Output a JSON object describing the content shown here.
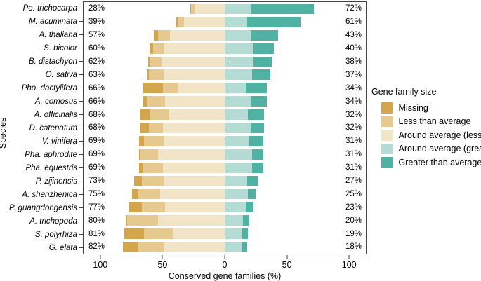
{
  "chart_data": {
    "type": "bar",
    "variant": "horizontal-diverging-stacked",
    "title": "",
    "xlabel": "Conserved gene families (%)",
    "ylabel": "Species",
    "x_range": [
      -114,
      114
    ],
    "grid": false,
    "x_ticks": [
      {
        "value": -100,
        "label": "100"
      },
      {
        "value": -50,
        "label": "50"
      },
      {
        "value": 0,
        "label": "0"
      },
      {
        "value": 50,
        "label": "50"
      },
      {
        "value": 100,
        "label": "100"
      }
    ],
    "legend": {
      "title": "Gene family size",
      "position": "right",
      "items": [
        {
          "label": "Missing",
          "color": "#d3a64e"
        },
        {
          "label": "Less than average",
          "color": "#e5c98e"
        },
        {
          "label": "Around average (less)",
          "color": "#f2e5c7"
        },
        {
          "label": "Around average (greater)",
          "color": "#b4dcd4"
        },
        {
          "label": "Greater than average",
          "color": "#4fb2a3"
        }
      ]
    },
    "series_keys": [
      "missing",
      "less_than_average",
      "around_average_less",
      "around_average_greater",
      "greater_than_average"
    ],
    "rows": [
      {
        "species": "Po. trichocarpa",
        "left_label": "28%",
        "right_label": "72%",
        "missing": 1,
        "less_than_average": 3,
        "around_average_less": 24,
        "around_average_greater": 21,
        "greater_than_average": 51
      },
      {
        "species": "M. acuminata",
        "left_label": "39%",
        "right_label": "61%",
        "missing": 1,
        "less_than_average": 5,
        "around_average_less": 33,
        "around_average_greater": 18,
        "greater_than_average": 43
      },
      {
        "species": "A. thaliana",
        "left_label": "57%",
        "right_label": "43%",
        "missing": 3,
        "less_than_average": 10,
        "around_average_less": 44,
        "around_average_greater": 21,
        "greater_than_average": 22
      },
      {
        "species": "S. bicolor",
        "left_label": "60%",
        "right_label": "40%",
        "missing": 2,
        "less_than_average": 9,
        "around_average_less": 49,
        "around_average_greater": 23,
        "greater_than_average": 17
      },
      {
        "species": "B. distachyon",
        "left_label": "62%",
        "right_label": "38%",
        "missing": 2,
        "less_than_average": 9,
        "around_average_less": 51,
        "around_average_greater": 23,
        "greater_than_average": 15
      },
      {
        "species": "O. sativa",
        "left_label": "63%",
        "right_label": "37%",
        "missing": 2,
        "less_than_average": 12,
        "around_average_less": 49,
        "around_average_greater": 22,
        "greater_than_average": 15
      },
      {
        "species": "Pho. dactylifera",
        "left_label": "66%",
        "right_label": "34%",
        "missing": 16,
        "less_than_average": 12,
        "around_average_less": 38,
        "around_average_greater": 17,
        "greater_than_average": 17
      },
      {
        "species": "A. comosus",
        "left_label": "66%",
        "right_label": "34%",
        "missing": 3,
        "less_than_average": 15,
        "around_average_less": 48,
        "around_average_greater": 21,
        "greater_than_average": 13
      },
      {
        "species": "A. officinalis",
        "left_label": "68%",
        "right_label": "32%",
        "missing": 8,
        "less_than_average": 15,
        "around_average_less": 45,
        "around_average_greater": 19,
        "greater_than_average": 13
      },
      {
        "species": "D. catenatum",
        "left_label": "68%",
        "right_label": "32%",
        "missing": 7,
        "less_than_average": 11,
        "around_average_less": 50,
        "around_average_greater": 21,
        "greater_than_average": 11
      },
      {
        "species": "V. vinifera",
        "left_label": "69%",
        "right_label": "31%",
        "missing": 4,
        "less_than_average": 16,
        "around_average_less": 49,
        "around_average_greater": 20,
        "greater_than_average": 11
      },
      {
        "species": "Pha. aphrodite",
        "left_label": "69%",
        "right_label": "31%",
        "missing": 1,
        "less_than_average": 14,
        "around_average_less": 54,
        "around_average_greater": 22,
        "greater_than_average": 9
      },
      {
        "species": "Pha. equestris",
        "left_label": "69%",
        "right_label": "31%",
        "missing": 3,
        "less_than_average": 16,
        "around_average_less": 50,
        "around_average_greater": 22,
        "greater_than_average": 9
      },
      {
        "species": "P. zijinensis",
        "left_label": "73%",
        "right_label": "27%",
        "missing": 6,
        "less_than_average": 18,
        "around_average_less": 49,
        "around_average_greater": 18,
        "greater_than_average": 9
      },
      {
        "species": "A. shenzhenica",
        "left_label": "75%",
        "right_label": "25%",
        "missing": 5,
        "less_than_average": 18,
        "around_average_less": 52,
        "around_average_greater": 19,
        "greater_than_average": 6
      },
      {
        "species": "P. guangdongensis",
        "left_label": "77%",
        "right_label": "23%",
        "missing": 10,
        "less_than_average": 19,
        "around_average_less": 48,
        "around_average_greater": 17,
        "greater_than_average": 6
      },
      {
        "species": "A. trichopoda",
        "left_label": "80%",
        "right_label": "20%",
        "missing": 1,
        "less_than_average": 25,
        "around_average_less": 54,
        "around_average_greater": 15,
        "greater_than_average": 5
      },
      {
        "species": "S. polyrhiza",
        "left_label": "81%",
        "right_label": "19%",
        "missing": 16,
        "less_than_average": 23,
        "around_average_less": 42,
        "around_average_greater": 14,
        "greater_than_average": 5
      },
      {
        "species": "G. elata",
        "left_label": "82%",
        "right_label": "18%",
        "missing": 12,
        "less_than_average": 21,
        "around_average_less": 49,
        "around_average_greater": 14,
        "greater_than_average": 4
      }
    ]
  }
}
